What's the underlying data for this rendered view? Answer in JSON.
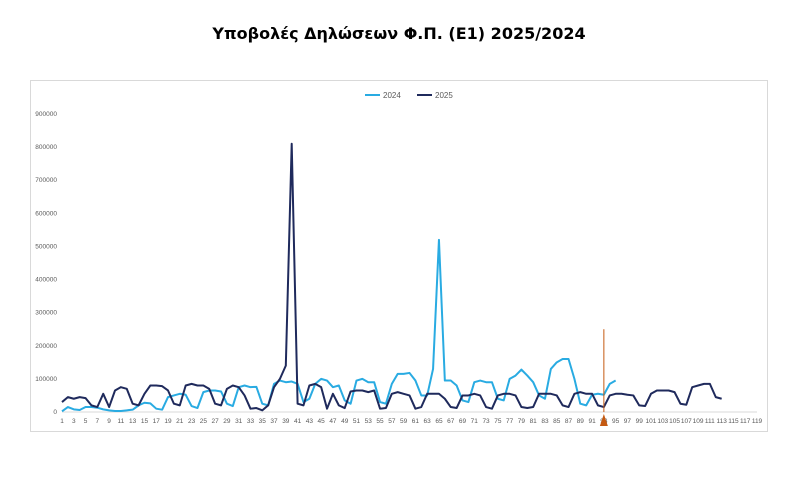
{
  "chart_data": {
    "type": "line",
    "title": "Υποβολές Δηλώσεων Φ.Π. (Ε1) 2025/2024",
    "ylim": [
      0,
      900000
    ],
    "y_ticks": [
      "0",
      "100000",
      "200000",
      "300000",
      "400000",
      "500000",
      "600000",
      "700000",
      "800000",
      "900000"
    ],
    "x_tick_labels": [
      "1",
      "3",
      "5",
      "7",
      "9",
      "11",
      "13",
      "15",
      "17",
      "19",
      "21",
      "23",
      "25",
      "27",
      "29",
      "31",
      "33",
      "35",
      "37",
      "39",
      "41",
      "43",
      "45",
      "47",
      "49",
      "51",
      "53",
      "55",
      "57",
      "59",
      "61",
      "63",
      "65",
      "67",
      "69",
      "71",
      "73",
      "75",
      "77",
      "79",
      "81",
      "83",
      "85",
      "87",
      "89",
      "91",
      "93",
      "95",
      "97",
      "99",
      "101",
      "103",
      "105",
      "107",
      "109",
      "111",
      "113",
      "115",
      "117",
      "119"
    ],
    "grid": false,
    "legend_position": "top-center",
    "marker_day": 93,
    "marker_color": "#c55a11",
    "series": [
      {
        "name": "2024",
        "color": "#29abe2",
        "values": [
          2000,
          15000,
          8000,
          6000,
          15000,
          15000,
          13000,
          8000,
          5000,
          3000,
          3000,
          5000,
          7000,
          20000,
          28000,
          26000,
          10000,
          7000,
          45000,
          50000,
          55000,
          52000,
          18000,
          12000,
          60000,
          65000,
          65000,
          62000,
          25000,
          18000,
          75000,
          80000,
          75000,
          76000,
          25000,
          20000,
          85000,
          95000,
          90000,
          92000,
          85000,
          30000,
          40000,
          85000,
          100000,
          95000,
          75000,
          80000,
          35000,
          25000,
          95000,
          100000,
          90000,
          90000,
          30000,
          25000,
          85000,
          115000,
          115000,
          118000,
          95000,
          50000,
          50000,
          130000,
          520000,
          95000,
          95000,
          80000,
          35000,
          30000,
          90000,
          95000,
          90000,
          90000,
          40000,
          35000,
          100000,
          110000,
          128000,
          110000,
          90000,
          50000,
          40000,
          130000,
          150000,
          160000,
          160000,
          100000,
          25000,
          20000,
          52000,
          55000,
          52000,
          85000,
          95000
        ]
      },
      {
        "name": "2025",
        "color": "#1f2a5c",
        "values": [
          30000,
          45000,
          40000,
          45000,
          42000,
          20000,
          15000,
          55000,
          15000,
          65000,
          75000,
          70000,
          25000,
          20000,
          55000,
          80000,
          80000,
          78000,
          65000,
          25000,
          20000,
          80000,
          85000,
          80000,
          80000,
          70000,
          25000,
          20000,
          70000,
          80000,
          75000,
          50000,
          10000,
          12000,
          5000,
          20000,
          75000,
          100000,
          140000,
          810000,
          25000,
          20000,
          80000,
          85000,
          75000,
          10000,
          55000,
          20000,
          12000,
          62000,
          65000,
          65000,
          60000,
          65000,
          10000,
          12000,
          55000,
          60000,
          55000,
          50000,
          10000,
          15000,
          55000,
          55000,
          55000,
          40000,
          15000,
          12000,
          50000,
          50000,
          55000,
          50000,
          15000,
          10000,
          50000,
          55000,
          55000,
          50000,
          15000,
          12000,
          15000,
          55000,
          55000,
          55000,
          50000,
          20000,
          15000,
          55000,
          60000,
          55000,
          55000,
          20000,
          15000,
          50000,
          55000,
          55000,
          52000,
          50000,
          20000,
          18000,
          55000,
          65000,
          65000,
          65000,
          60000,
          25000,
          22000,
          75000,
          80000,
          85000,
          85000,
          45000,
          40000
        ]
      }
    ]
  }
}
